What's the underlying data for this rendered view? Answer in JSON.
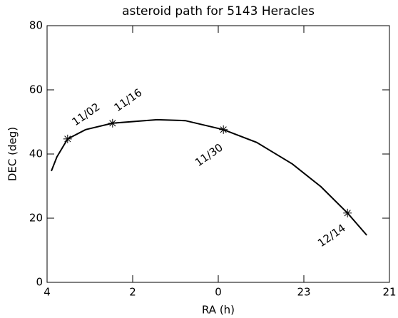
{
  "chart_data": {
    "type": "line",
    "title": "asteroid path for 5143 Heracles",
    "x_label": "RA (h)",
    "y_label": "DEC (deg)",
    "x": [
      3.9,
      3.77,
      3.52,
      3.1,
      2.47,
      1.43,
      0.77,
      -0.12,
      -0.9,
      -1.73,
      -2.4,
      -3.02,
      -3.47
    ],
    "y": [
      34.7,
      39.1,
      44.7,
      47.6,
      49.6,
      50.7,
      50.4,
      47.6,
      43.6,
      36.9,
      29.8,
      21.6,
      14.7
    ],
    "color": "#000000",
    "points": [
      {
        "label": "11/02",
        "x": 3.52,
        "y": 44.7
      },
      {
        "label": "11/16",
        "x": 2.47,
        "y": 49.6
      },
      {
        "label": "11/30",
        "x": -0.12,
        "y": 47.6
      },
      {
        "label": "12/14",
        "x": -3.02,
        "y": 21.6
      }
    ],
    "xlim": [
      4,
      -4
    ],
    "xticks": [
      4,
      2,
      0,
      {
        "value": -2,
        "label": "23"
      },
      {
        "value": -4,
        "label": "21"
      }
    ],
    "ylim": [
      0,
      80
    ],
    "yticks": [
      0,
      20,
      40,
      60,
      80
    ]
  }
}
